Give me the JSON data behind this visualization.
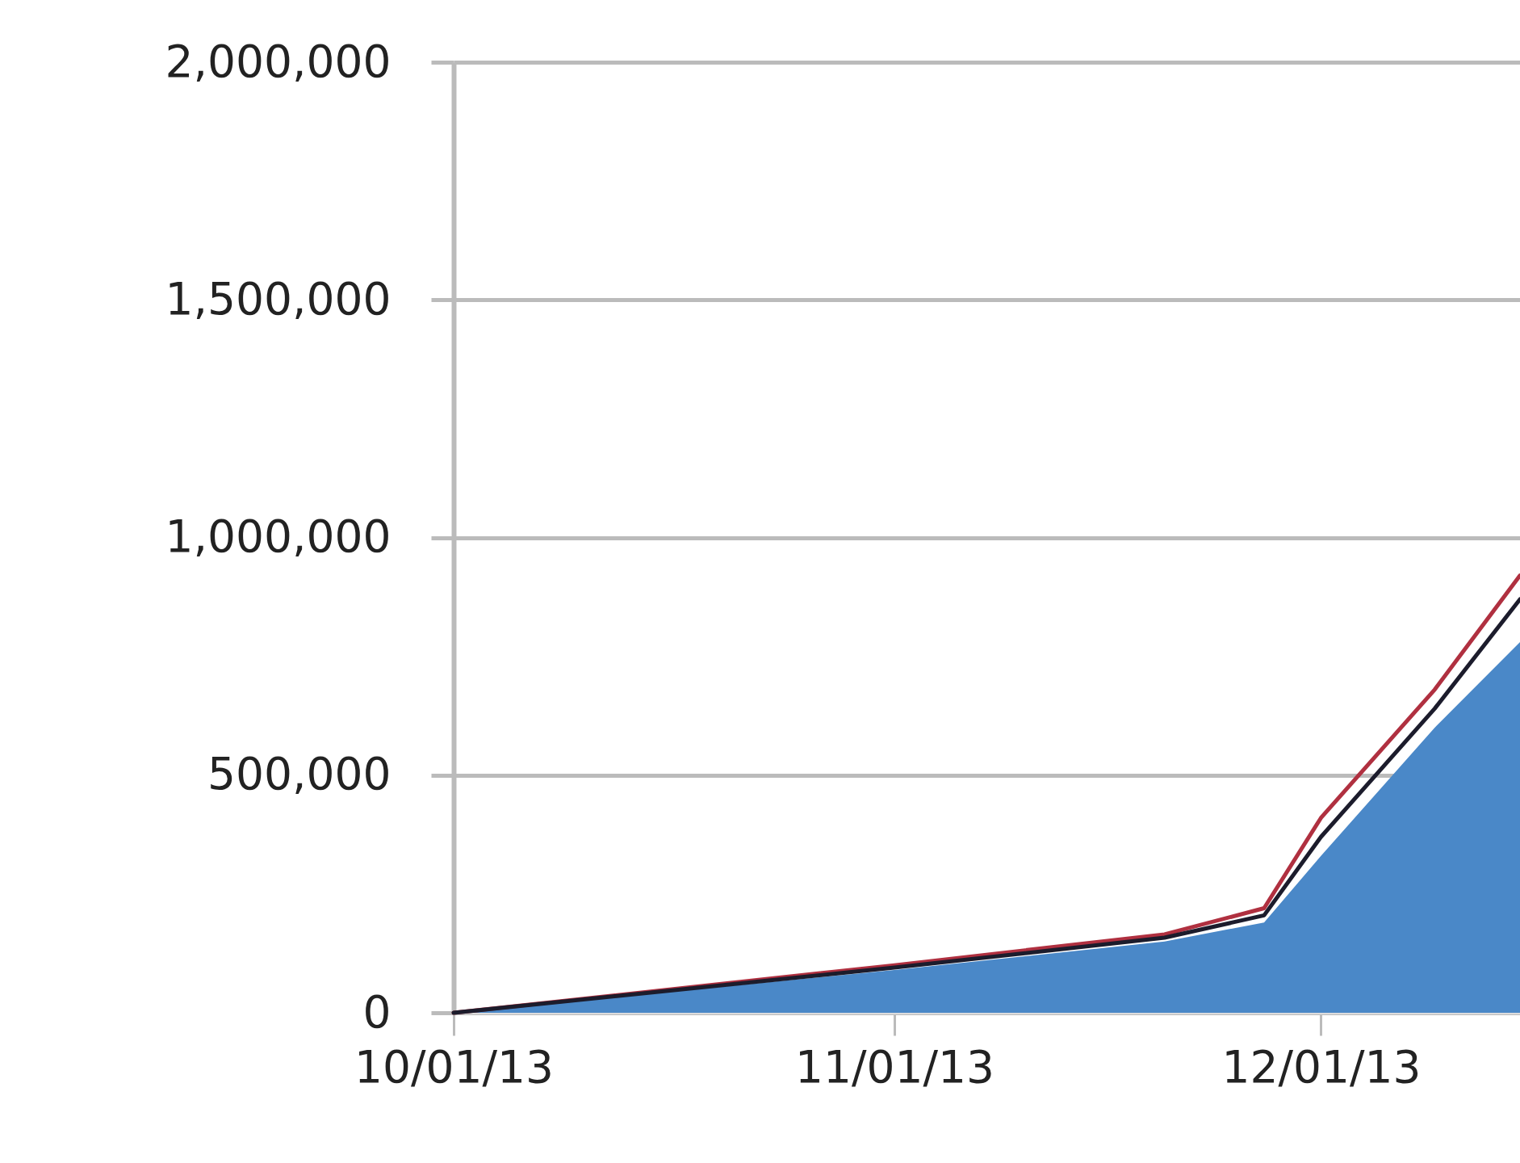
{
  "chart_data": {
    "type": "area",
    "x": [
      "2013-10-01",
      "2013-11-01",
      "2013-11-20",
      "2013-11-27",
      "2013-12-01",
      "2013-12-09",
      "2013-12-15"
    ],
    "series": [
      {
        "color": "#4a88c8",
        "values": [
          0,
          90000,
          150000,
          190000,
          330000,
          600000,
          780000
        ]
      },
      {
        "type": "line",
        "color": "#b03040",
        "values": [
          0,
          100000,
          165000,
          220000,
          410000,
          680000,
          920000
        ]
      },
      {
        "type": "line",
        "color": "#1c1c2c",
        "values": [
          0,
          95000,
          158000,
          205000,
          370000,
          640000,
          870000
        ]
      }
    ],
    "xlim": [
      "2013-10-01",
      "2013-12-15"
    ],
    "xticks": [
      {
        "value": "2013-10-01",
        "label": "10/01/13"
      },
      {
        "value": "2013-11-01",
        "label": "11/01/13"
      },
      {
        "value": "2013-12-01",
        "label": "12/01/13"
      }
    ],
    "ylim": [
      0,
      2000000
    ],
    "yticks": [
      {
        "value": 0,
        "label": "0"
      },
      {
        "value": 500000,
        "label": "500,000"
      },
      {
        "value": 1000000,
        "label": "1,000,000"
      },
      {
        "value": 1500000,
        "label": "1,500,000"
      },
      {
        "value": 2000000,
        "label": "2,000,000"
      }
    ],
    "grid": "y"
  }
}
